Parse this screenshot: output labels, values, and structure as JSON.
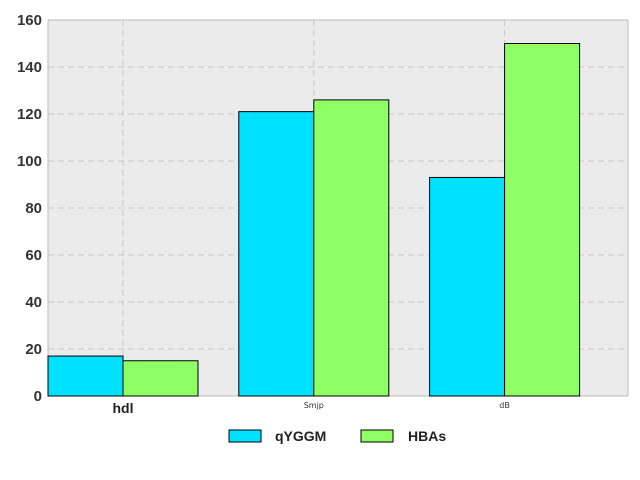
{
  "chart_data": {
    "type": "bar",
    "categories": [
      "hdl",
      "Smjp",
      "dB"
    ],
    "series": [
      {
        "name": "qYGGM",
        "values": [
          17,
          121,
          93
        ],
        "color": "#00e1ff"
      },
      {
        "name": "HBAs",
        "values": [
          15,
          126,
          150
        ],
        "color": "#8fff66"
      }
    ],
    "ylim": [
      0,
      160
    ],
    "yticks": [
      0,
      20,
      40,
      60,
      80,
      100,
      120,
      140,
      160
    ],
    "grid": true,
    "legend_position": "bottom-center",
    "background": "#ebebeb"
  }
}
